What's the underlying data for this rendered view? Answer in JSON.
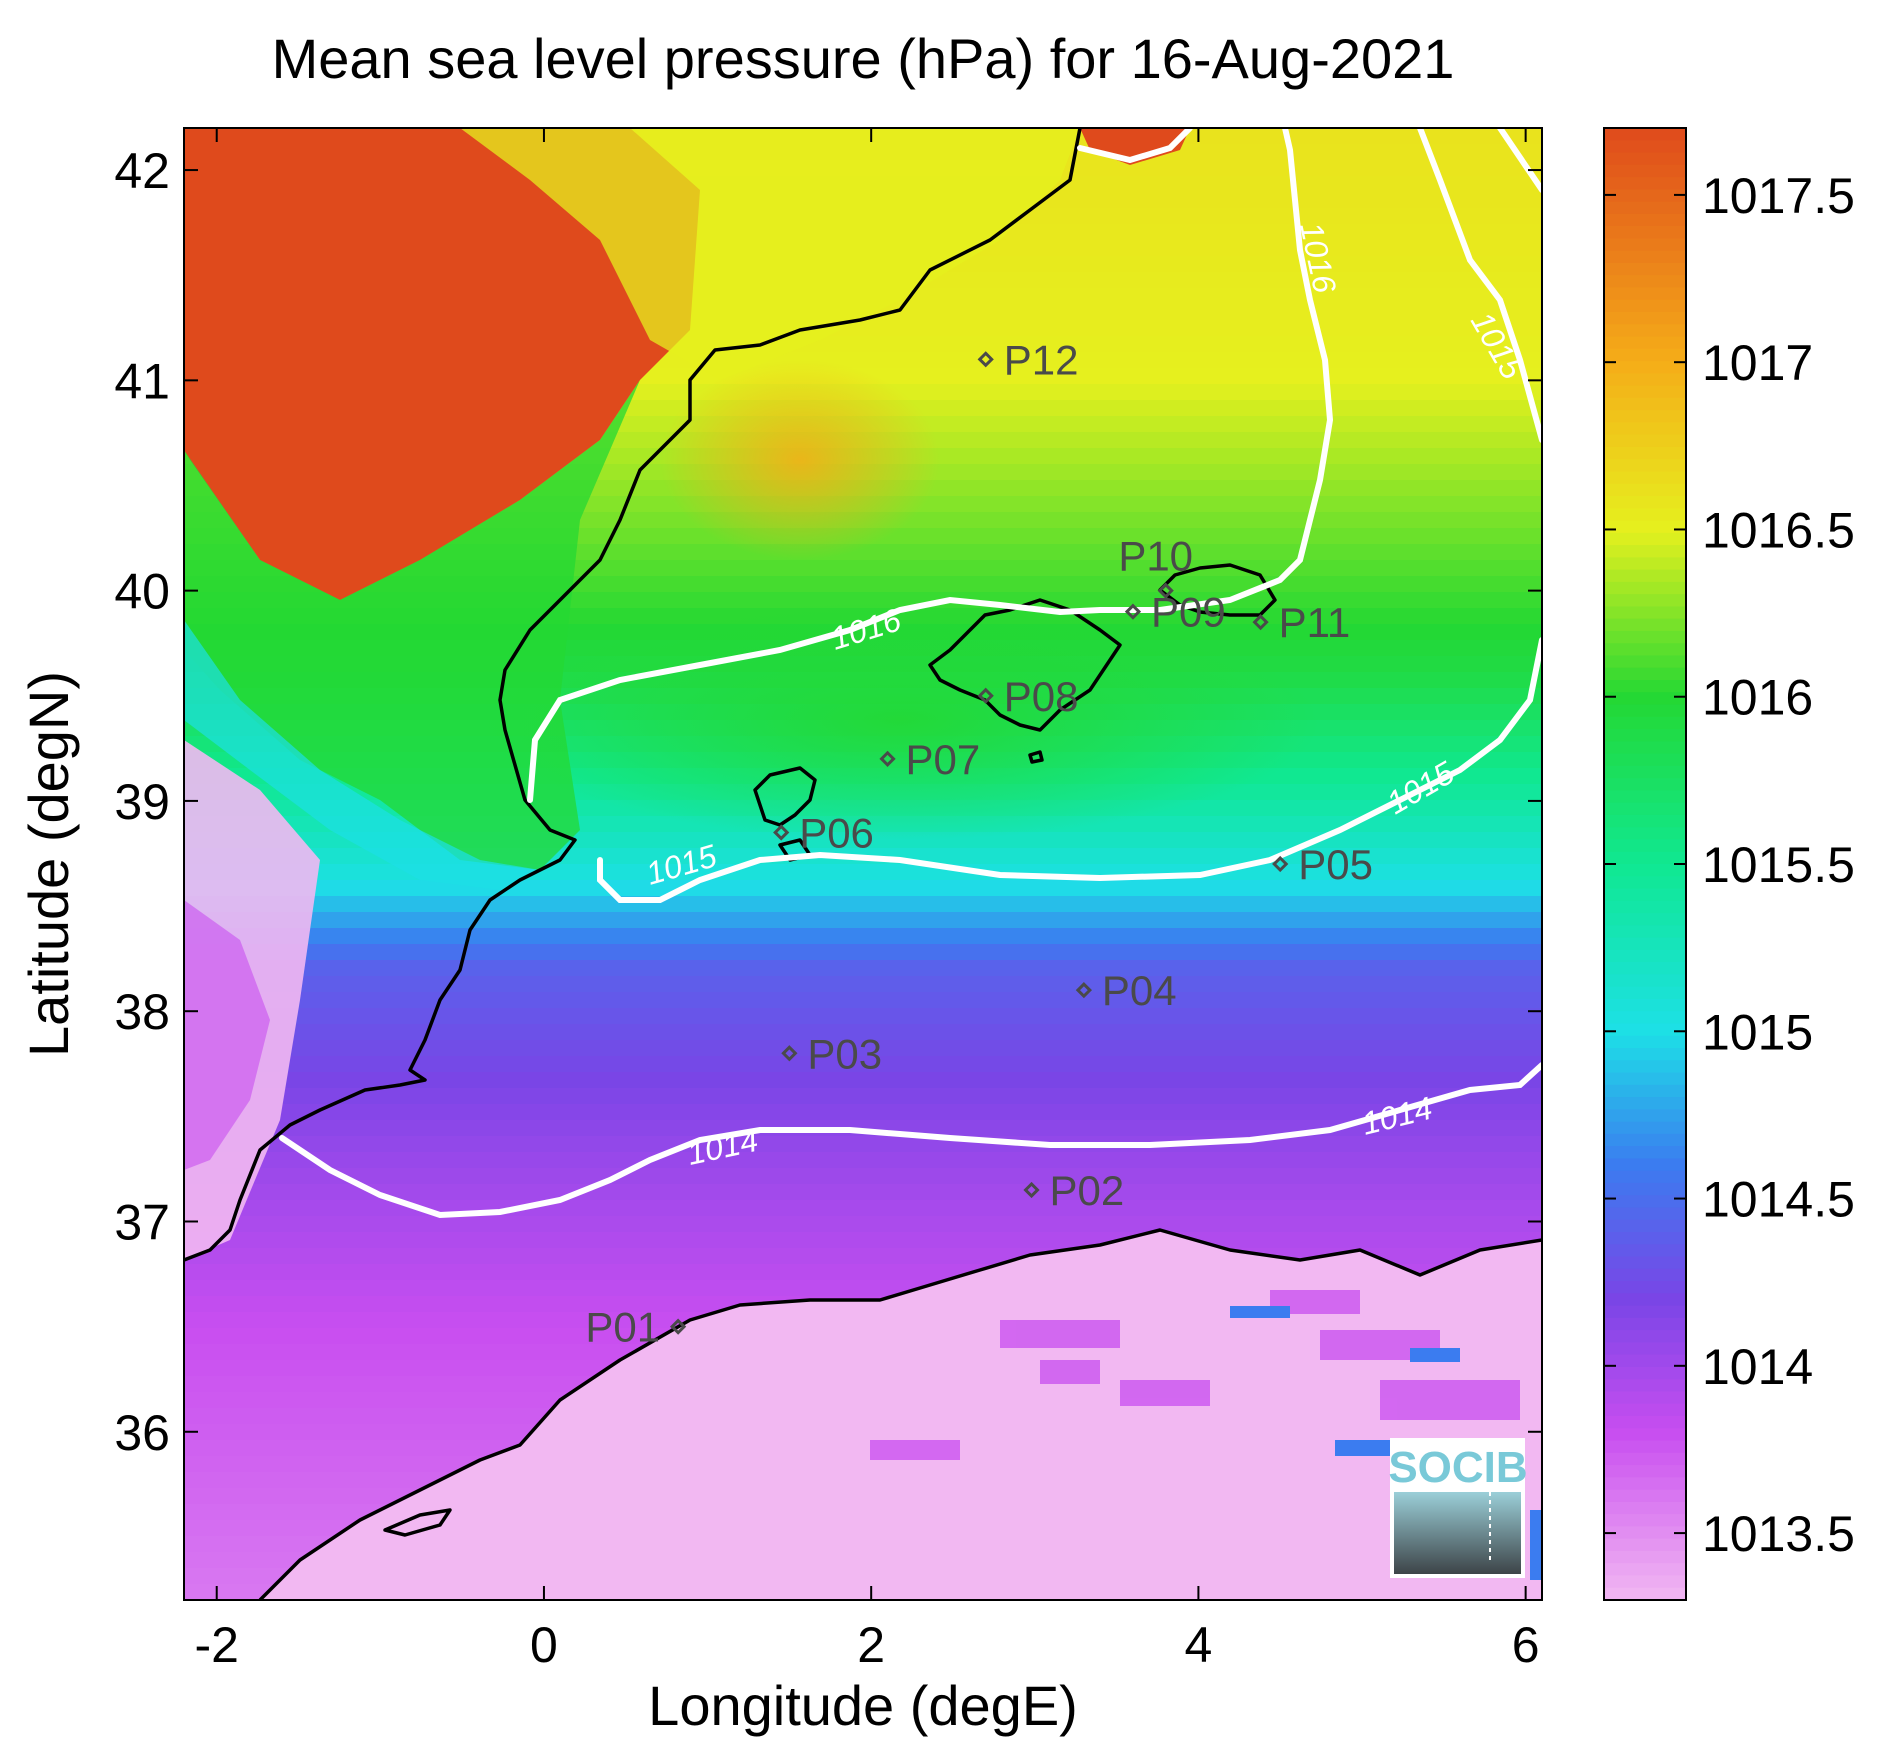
{
  "title": "Mean sea level pressure (hPa) for 16-Aug-2021",
  "x_axis": {
    "label": "Longitude (degE)",
    "range": [
      -2.2,
      6.1
    ],
    "ticks": [
      -2,
      0,
      2,
      4,
      6
    ]
  },
  "y_axis": {
    "label": "Latitude (degN)",
    "range": [
      35.2,
      42.2
    ],
    "ticks": [
      36,
      37,
      38,
      39,
      40,
      41,
      42
    ]
  },
  "colorbar": {
    "range": [
      1013.3,
      1017.7
    ],
    "tick_labels": [
      "1013.5",
      "1014",
      "1014.5",
      "1015",
      "1015.5",
      "1016",
      "1016.5",
      "1017",
      "1017.5"
    ],
    "ticks": [
      1013.5,
      1014,
      1014.5,
      1015,
      1015.5,
      1016,
      1016.5,
      1017,
      1017.5
    ],
    "stops": [
      {
        "v": 1013.3,
        "c": "#f2b8f2"
      },
      {
        "v": 1013.8,
        "c": "#c84ef0"
      },
      {
        "v": 1014.2,
        "c": "#7a45e6"
      },
      {
        "v": 1014.6,
        "c": "#3b7cf0"
      },
      {
        "v": 1015.0,
        "c": "#1de0e6"
      },
      {
        "v": 1015.5,
        "c": "#10e891"
      },
      {
        "v": 1016.0,
        "c": "#24d833"
      },
      {
        "v": 1016.5,
        "c": "#e6f01e"
      },
      {
        "v": 1017.0,
        "c": "#f5ad18"
      },
      {
        "v": 1017.7,
        "c": "#df4a1c"
      }
    ]
  },
  "contours": [
    {
      "label": "1014",
      "positions": [
        "lower-center",
        "lower-right"
      ]
    },
    {
      "label": "1015",
      "positions": [
        "center-left",
        "center-right",
        "upper-right"
      ]
    },
    {
      "label": "1016",
      "positions": [
        "center",
        "upper-right"
      ]
    }
  ],
  "points": [
    {
      "id": "P01",
      "lon": 0.82,
      "lat": 36.5
    },
    {
      "id": "P02",
      "lon": 2.98,
      "lat": 37.15
    },
    {
      "id": "P03",
      "lon": 1.5,
      "lat": 37.8
    },
    {
      "id": "P04",
      "lon": 3.3,
      "lat": 38.1
    },
    {
      "id": "P05",
      "lon": 4.5,
      "lat": 38.7
    },
    {
      "id": "P06",
      "lon": 1.45,
      "lat": 38.85
    },
    {
      "id": "P07",
      "lon": 2.1,
      "lat": 39.2
    },
    {
      "id": "P08",
      "lon": 2.7,
      "lat": 39.5
    },
    {
      "id": "P09",
      "lon": 3.6,
      "lat": 39.9
    },
    {
      "id": "P10",
      "lon": 3.8,
      "lat": 40.0
    },
    {
      "id": "P11",
      "lon": 4.38,
      "lat": 39.85
    },
    {
      "id": "P12",
      "lon": 2.7,
      "lat": 41.1
    }
  ],
  "logo": {
    "text": "SOCIB"
  },
  "colors": {
    "contour": "#ffffff",
    "coastline": "#000000",
    "marker": "#4a4a4a"
  }
}
